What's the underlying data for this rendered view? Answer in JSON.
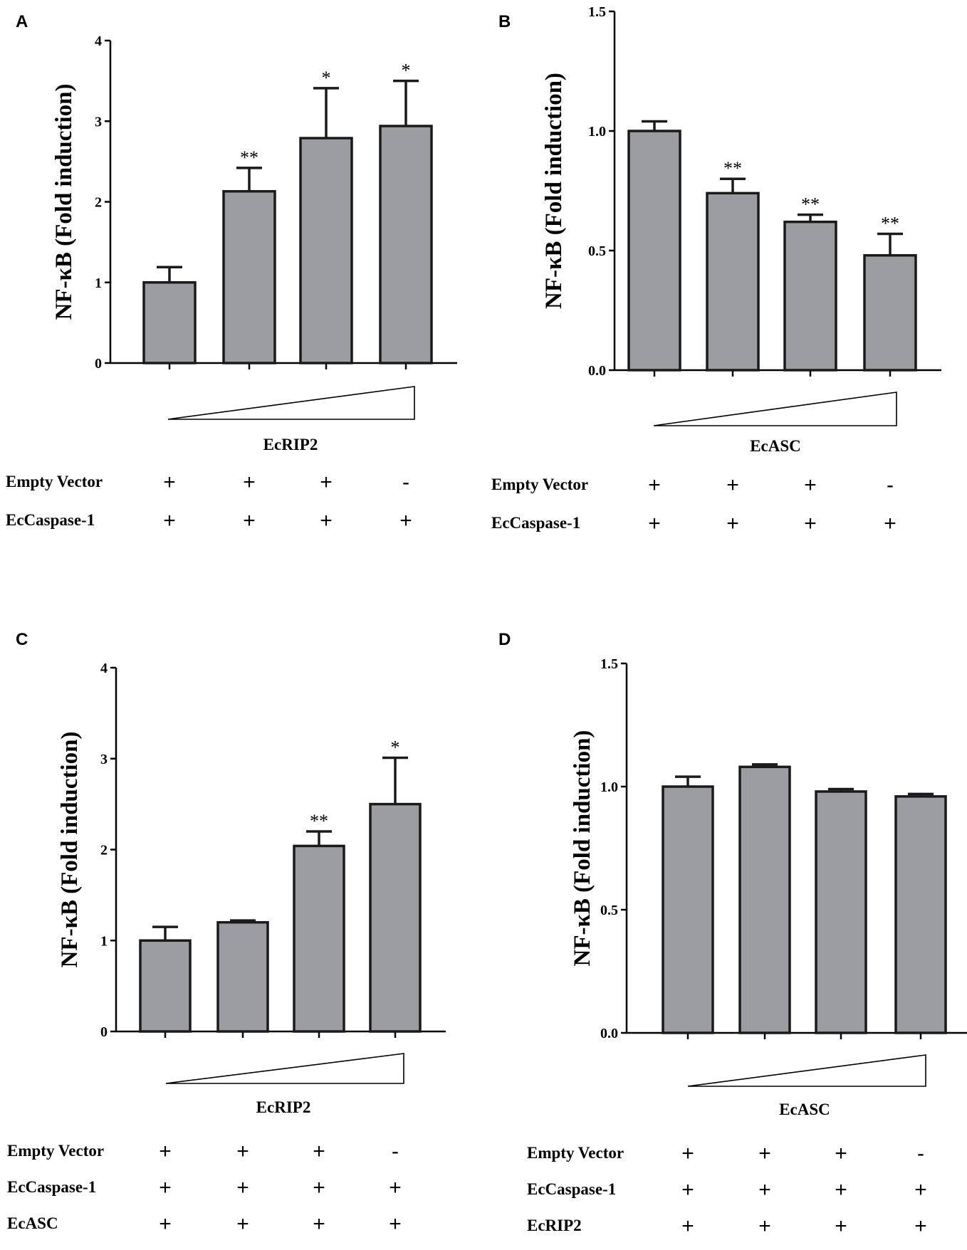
{
  "colors": {
    "bar_fill": "#9c9ca3",
    "bar_stroke": "#1a1a1a",
    "axis": "#000000"
  },
  "chart_data": [
    {
      "panel": "A",
      "type": "bar",
      "ylabel": "NF-κB (Fold induction)",
      "ylim": [
        0,
        4
      ],
      "yticks": [
        "0",
        "1",
        "2",
        "3",
        "4"
      ],
      "values": [
        1.0,
        2.13,
        2.79,
        2.94
      ],
      "errors": [
        0.19,
        0.29,
        0.62,
        0.56
      ],
      "significance": [
        "",
        "**",
        "*",
        "*"
      ],
      "gradient_label": "EcRIP2",
      "rows": [
        {
          "label": "Empty Vector",
          "signs": [
            "+",
            "+",
            "+",
            "-"
          ]
        },
        {
          "label": "EcCaspase-1",
          "signs": [
            "+",
            "+",
            "+",
            "+"
          ]
        }
      ]
    },
    {
      "panel": "B",
      "type": "bar",
      "ylabel": "NF-κB (Fold induction)",
      "ylim": [
        0,
        1.5
      ],
      "yticks": [
        "0.0",
        "0.5",
        "1.0",
        "1.5"
      ],
      "values": [
        1.0,
        0.74,
        0.62,
        0.48
      ],
      "errors": [
        0.04,
        0.06,
        0.03,
        0.09
      ],
      "significance": [
        "",
        "**",
        "**",
        "**"
      ],
      "gradient_label": "EcASC",
      "rows": [
        {
          "label": "Empty Vector",
          "signs": [
            "+",
            "+",
            "+",
            "-"
          ]
        },
        {
          "label": "EcCaspase-1",
          "signs": [
            "+",
            "+",
            "+",
            "+"
          ]
        }
      ]
    },
    {
      "panel": "C",
      "type": "bar",
      "ylabel": "NF-κB (Fold induction)",
      "ylim": [
        0,
        4
      ],
      "yticks": [
        "0",
        "1",
        "2",
        "3",
        "4"
      ],
      "values": [
        1.0,
        1.2,
        2.04,
        2.5
      ],
      "errors": [
        0.15,
        0.02,
        0.16,
        0.51
      ],
      "significance": [
        "",
        "",
        "**",
        "*"
      ],
      "gradient_label": "EcRIP2",
      "rows": [
        {
          "label": "Empty Vector",
          "signs": [
            "+",
            "+",
            "+",
            "-"
          ]
        },
        {
          "label": "EcCaspase-1",
          "signs": [
            "+",
            "+",
            "+",
            "+"
          ]
        },
        {
          "label": "EcASC",
          "signs": [
            "+",
            "+",
            "+",
            "+"
          ]
        }
      ]
    },
    {
      "panel": "D",
      "type": "bar",
      "ylabel": "NF-κB (Fold induction)",
      "ylim": [
        0,
        1.5
      ],
      "yticks": [
        "0.0",
        "0.5",
        "1.0",
        "1.5"
      ],
      "values": [
        1.0,
        1.08,
        0.98,
        0.96
      ],
      "errors": [
        0.04,
        0.01,
        0.01,
        0.01
      ],
      "significance": [
        "",
        "",
        "",
        ""
      ],
      "gradient_label": "EcASC",
      "rows": [
        {
          "label": "Empty Vector",
          "signs": [
            "+",
            "+",
            "+",
            "-"
          ]
        },
        {
          "label": "EcCaspase-1",
          "signs": [
            "+",
            "+",
            "+",
            "+"
          ]
        },
        {
          "label": "EcRIP2",
          "signs": [
            "+",
            "+",
            "+",
            "+"
          ]
        }
      ]
    }
  ]
}
